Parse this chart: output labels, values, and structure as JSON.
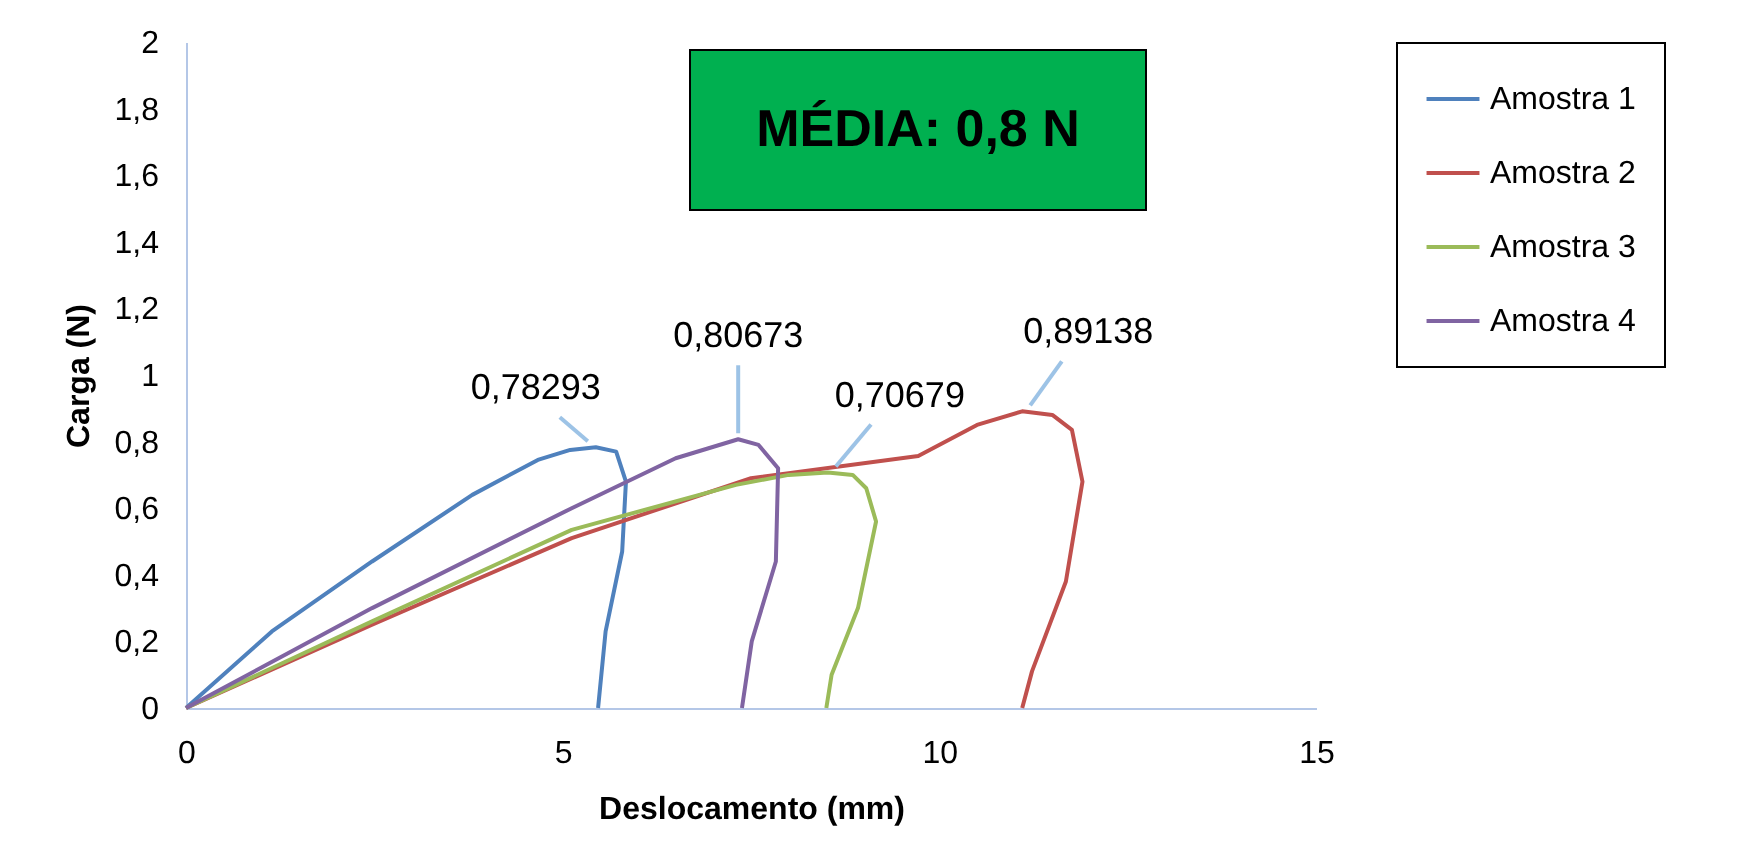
{
  "chart_data": {
    "type": "line",
    "xlabel": "Deslocamento (mm)",
    "ylabel": "Carga (N)",
    "xlim": [
      0,
      15
    ],
    "xticks": [
      0,
      5,
      10,
      15
    ],
    "ylim": [
      0,
      2
    ],
    "yticks": [
      0,
      {
        "value": 0.2,
        "label": "0,2"
      },
      {
        "value": 0.4,
        "label": "0,4"
      },
      {
        "value": 0.6,
        "label": "0,6"
      },
      {
        "value": 0.8,
        "label": "0,8"
      },
      1,
      {
        "value": 1.2,
        "label": "1,2"
      },
      {
        "value": 1.4,
        "label": "1,4"
      },
      {
        "value": 1.6,
        "label": "1,6"
      },
      {
        "value": 1.8,
        "label": "1,8"
      },
      2
    ],
    "grid": false,
    "legend": "right",
    "marker": "none",
    "line_style": "solid",
    "series": [
      {
        "name": "Amostra 1",
        "color": "#4f81bd",
        "x": [
          0,
          1.14,
          2.47,
          3.8,
          4.67,
          5.1,
          5.44,
          5.71,
          5.84,
          5.79,
          5.57,
          5.47
        ],
        "values": [
          0,
          0.23,
          0.44,
          0.64,
          0.745,
          0.775,
          0.783,
          0.77,
          0.68,
          0.47,
          0.23,
          0
        ]
      },
      {
        "name": "Amostra 2",
        "color": "#c0504d",
        "x": [
          0,
          2.47,
          5.12,
          7.5,
          9.72,
          10.5,
          11.1,
          11.5,
          11.76,
          11.9,
          11.68,
          11.23,
          11.1
        ],
        "values": [
          0,
          0.25,
          0.51,
          0.69,
          0.757,
          0.85,
          0.891,
          0.88,
          0.835,
          0.68,
          0.38,
          0.11,
          0
        ]
      },
      {
        "name": "Amostra 3",
        "color": "#9bbb59",
        "x": [
          0,
          2.47,
          5.12,
          7.3,
          8.0,
          8.52,
          8.85,
          9.03,
          9.16,
          8.92,
          8.57,
          8.5
        ],
        "values": [
          0,
          0.26,
          0.535,
          0.67,
          0.7,
          0.707,
          0.7,
          0.66,
          0.56,
          0.3,
          0.1,
          0
        ]
      },
      {
        "name": "Amostra 4",
        "color": "#8064a2",
        "x": [
          0,
          2.47,
          5.12,
          6.5,
          7.33,
          7.6,
          7.86,
          7.83,
          7.51,
          7.38
        ],
        "values": [
          0,
          0.3,
          0.6,
          0.75,
          0.807,
          0.79,
          0.72,
          0.44,
          0.2,
          0
        ]
      }
    ],
    "annotations": [
      "MÉDIA: 0,8 N",
      {
        "text": "0,78293",
        "x": 5.44,
        "y": 0.783
      },
      {
        "text": "0,89138",
        "x": 11.1,
        "y": 0.891
      },
      {
        "text": "0,70679",
        "x": 8.52,
        "y": 0.707
      },
      {
        "text": "0,80673",
        "x": 7.33,
        "y": 0.807
      }
    ]
  }
}
